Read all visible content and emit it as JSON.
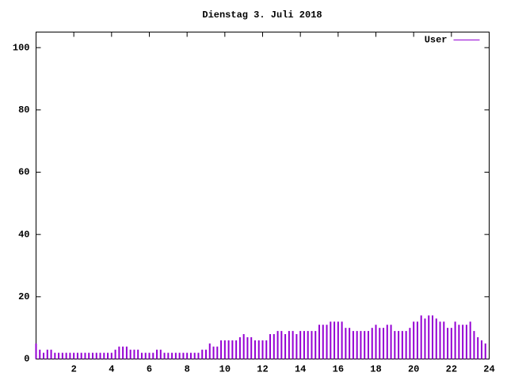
{
  "chart_data": {
    "type": "impulse",
    "title": "Dienstag 3. Juli 2018",
    "x": [
      0,
      0.2,
      0.4,
      0.6,
      0.8,
      1,
      1.2,
      1.4,
      1.6,
      1.8,
      2,
      2.2,
      2.4,
      2.6,
      2.8,
      3,
      3.2,
      3.4,
      3.6,
      3.8,
      4,
      4.2,
      4.4,
      4.6,
      4.8,
      5,
      5.2,
      5.4,
      5.6,
      5.8,
      6,
      6.2,
      6.4,
      6.6,
      6.8,
      7,
      7.2,
      7.4,
      7.6,
      7.8,
      8,
      8.2,
      8.4,
      8.6,
      8.8,
      9,
      9.2,
      9.4,
      9.6,
      9.8,
      10,
      10.2,
      10.4,
      10.6,
      10.8,
      11,
      11.2,
      11.4,
      11.6,
      11.8,
      12,
      12.2,
      12.4,
      12.6,
      12.8,
      13,
      13.2,
      13.4,
      13.6,
      13.8,
      14,
      14.2,
      14.4,
      14.6,
      14.8,
      15,
      15.2,
      15.4,
      15.6,
      15.8,
      16,
      16.2,
      16.4,
      16.6,
      16.8,
      17,
      17.2,
      17.4,
      17.6,
      17.8,
      18,
      18.2,
      18.4,
      18.6,
      18.8,
      19,
      19.2,
      19.4,
      19.6,
      19.8,
      20,
      20.2,
      20.4,
      20.6,
      20.8,
      21,
      21.2,
      21.4,
      21.6,
      21.8,
      22,
      22.2,
      22.4,
      22.6,
      22.8,
      23,
      23.2,
      23.4,
      23.6,
      23.8
    ],
    "series": [
      {
        "name": "User",
        "color": "#9400d3",
        "values": [
          5,
          3,
          2,
          3,
          3,
          2,
          2,
          2,
          2,
          2,
          2,
          2,
          2,
          2,
          2,
          2,
          2,
          2,
          2,
          2,
          2,
          3,
          4,
          4,
          4,
          3,
          3,
          3,
          2,
          2,
          2,
          2,
          3,
          3,
          2,
          2,
          2,
          2,
          2,
          2,
          2,
          2,
          2,
          2,
          3,
          3,
          5,
          4,
          4,
          6,
          6,
          6,
          6,
          6,
          7,
          8,
          7,
          7,
          6,
          6,
          6,
          6,
          8,
          8,
          9,
          9,
          8,
          9,
          9,
          8,
          9,
          9,
          9,
          9,
          9,
          11,
          11,
          11,
          12,
          12,
          12,
          12,
          10,
          10,
          9,
          9,
          9,
          9,
          9,
          10,
          11,
          10,
          10,
          11,
          11,
          9,
          9,
          9,
          9,
          10,
          12,
          12,
          14,
          13,
          14,
          14,
          13,
          12,
          12,
          10,
          10,
          12,
          11,
          11,
          11,
          12,
          9,
          7,
          6,
          5
        ]
      }
    ],
    "xlim": [
      0,
      24
    ],
    "xticks": [
      2,
      4,
      6,
      8,
      10,
      12,
      14,
      16,
      18,
      20,
      22,
      24
    ],
    "ylim": [
      0,
      105
    ],
    "yticks": [
      0,
      20,
      40,
      60,
      80,
      100
    ],
    "grid": false,
    "legend": "top-right"
  }
}
